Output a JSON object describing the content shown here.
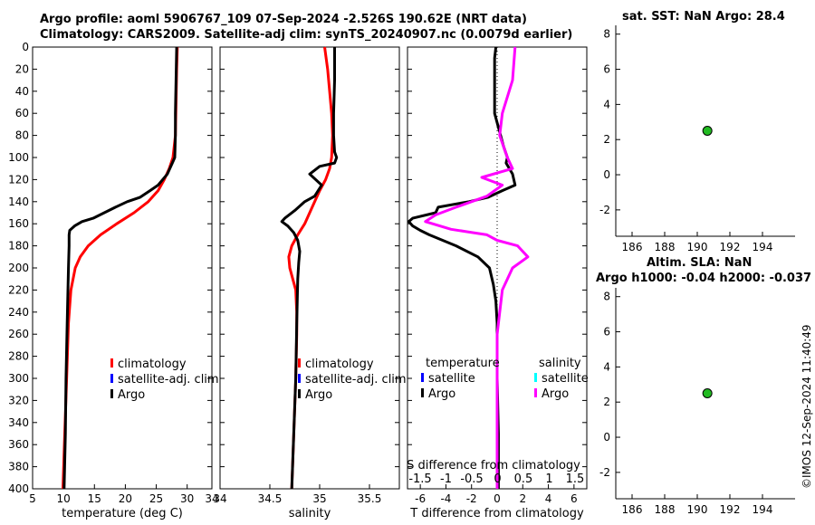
{
  "header": {
    "title_line1": "Argo profile: aoml 5906767_109 07-Sep-2024 -2.526S 190.62E (NRT data)",
    "title_line2": "Climatology: CARS2009. Satellite-adj clim: synTS_20240907.nc (0.0079d earlier)"
  },
  "sst_panel_title": "sat. SST: NaN Argo: 28.4",
  "sla_panel_title_line1": "Altim. SLA: NaN",
  "sla_panel_title_line2": "Argo h1000: -0.04 h2000: -0.037",
  "timestamp": "©IMOS 12-Sep-2024 11:40:49",
  "colors": {
    "climatology": "#ff0000",
    "satellite": "#0000ff",
    "argo": "#000000",
    "salinity_diff": "#ff00ff",
    "salinity_satellite": "#00ffff",
    "marker": "#22bb22"
  },
  "chart_data": [
    {
      "type": "line",
      "name": "temperature",
      "xlabel": "temperature (deg C)",
      "ylabel": "",
      "xlim": [
        5,
        34
      ],
      "ylim": [
        400,
        0
      ],
      "xticks": [
        5,
        10,
        15,
        20,
        25,
        30,
        34
      ],
      "yticks": [
        0,
        20,
        40,
        60,
        80,
        100,
        120,
        140,
        160,
        180,
        200,
        220,
        240,
        260,
        280,
        300,
        320,
        340,
        360,
        380,
        400
      ],
      "legend": [
        "climatology",
        "satellite-adj. clim",
        "Argo"
      ],
      "series": [
        {
          "name": "climatology",
          "color": "#ff0000",
          "depth": [
            0,
            20,
            50,
            80,
            100,
            110,
            120,
            130,
            140,
            150,
            160,
            170,
            180,
            190,
            200,
            220,
            250,
            300,
            350,
            400
          ],
          "values": [
            28.4,
            28.3,
            28.2,
            28.1,
            27.7,
            27.1,
            26.3,
            25.3,
            23.7,
            21.4,
            18.6,
            16.0,
            14.0,
            12.7,
            11.9,
            11.2,
            10.8,
            10.5,
            10.2,
            9.9
          ]
        },
        {
          "name": "Argo",
          "color": "#000000",
          "depth": [
            0,
            30,
            60,
            80,
            100,
            105,
            115,
            125,
            130,
            136,
            140,
            145,
            150,
            155,
            158,
            162,
            166,
            170,
            180,
            200,
            250,
            300,
            350,
            400
          ],
          "values": [
            28.3,
            28.2,
            28.1,
            28.1,
            28.0,
            27.6,
            26.8,
            25.3,
            24.0,
            22.4,
            20.3,
            18.4,
            16.6,
            14.8,
            13.0,
            11.8,
            11.0,
            10.9,
            10.9,
            10.8,
            10.6,
            10.4,
            10.3,
            10.1
          ]
        }
      ]
    },
    {
      "type": "line",
      "name": "salinity",
      "xlabel": "salinity",
      "xlim": [
        34,
        35.8
      ],
      "ylim": [
        400,
        0
      ],
      "xticks": [
        34.5,
        35,
        35.5
      ],
      "legend": [
        "climatology",
        "satellite-adj. clim",
        "Argo"
      ],
      "series": [
        {
          "name": "climatology",
          "color": "#ff0000",
          "depth": [
            0,
            20,
            40,
            60,
            80,
            100,
            110,
            120,
            130,
            140,
            150,
            160,
            170,
            180,
            190,
            200,
            210,
            220,
            240,
            260,
            300,
            350,
            400
          ],
          "values": [
            35.05,
            35.08,
            35.1,
            35.12,
            35.13,
            35.12,
            35.1,
            35.06,
            35.0,
            34.95,
            34.9,
            34.85,
            34.78,
            34.72,
            34.69,
            34.7,
            34.73,
            34.76,
            34.77,
            34.77,
            34.76,
            34.74,
            34.72
          ]
        },
        {
          "name": "Argo",
          "color": "#000000",
          "depth": [
            0,
            30,
            60,
            80,
            95,
            100,
            105,
            108,
            115,
            125,
            135,
            140,
            148,
            155,
            158,
            162,
            168,
            175,
            185,
            195,
            210,
            250,
            300,
            350,
            400
          ],
          "values": [
            35.15,
            35.15,
            35.14,
            35.14,
            35.15,
            35.17,
            35.15,
            35.0,
            34.9,
            35.02,
            34.95,
            34.85,
            34.75,
            34.65,
            34.62,
            34.68,
            34.74,
            34.78,
            34.8,
            34.79,
            34.78,
            34.77,
            34.76,
            34.74,
            34.72
          ]
        }
      ]
    },
    {
      "type": "line",
      "name": "difference",
      "xlabel": "T difference from climatology",
      "xlim": [
        -7,
        7
      ],
      "ylim": [
        400,
        0
      ],
      "xticks": [
        -6,
        -4,
        -2,
        0,
        2,
        4,
        6
      ],
      "top_axis_label": "S difference from climatology",
      "top_xticks": [
        "-1.5",
        "-1",
        "-0.5",
        "0",
        "0.5",
        "1",
        "1.5"
      ],
      "legend_temperature": {
        "heading": "temperature",
        "items": [
          "satellite",
          "Argo"
        ]
      },
      "legend_salinity": {
        "heading": "salinity",
        "items": [
          "satellite",
          "Argo"
        ]
      },
      "series": [
        {
          "name": "temperature Argo",
          "color": "#000000",
          "depth": [
            0,
            10,
            60,
            90,
            100,
            105,
            115,
            125,
            130,
            136,
            140,
            145,
            150,
            155,
            158,
            162,
            166,
            170,
            180,
            190,
            200,
            215,
            230,
            250,
            300,
            350,
            400
          ],
          "values": [
            -0.1,
            -0.2,
            -0.2,
            0.5,
            0.8,
            0.7,
            1.2,
            1.4,
            0.4,
            -0.7,
            -2.2,
            -4.6,
            -4.8,
            -6.6,
            -6.9,
            -6.6,
            -6.0,
            -5.3,
            -3.2,
            -1.5,
            -0.6,
            -0.3,
            -0.1,
            0.0,
            0.0,
            0.1,
            0.1
          ]
        },
        {
          "name": "salinity Argo",
          "color": "#ff00ff",
          "depth": [
            0,
            30,
            60,
            80,
            100,
            110,
            118,
            125,
            135,
            145,
            152,
            158,
            165,
            170,
            175,
            180,
            190,
            200,
            220,
            260,
            300,
            350,
            400
          ],
          "values": [
            0.35,
            0.3,
            0.1,
            0.05,
            0.2,
            0.3,
            -0.3,
            0.1,
            -0.2,
            -0.8,
            -1.2,
            -1.4,
            -0.9,
            -0.2,
            0.0,
            0.4,
            0.6,
            0.3,
            0.1,
            0.0,
            0.0,
            0.0,
            0.0
          ]
        }
      ]
    },
    {
      "type": "scatter",
      "name": "sat_sst",
      "xlim": [
        185,
        196
      ],
      "ylim": [
        -3.5,
        8.5
      ],
      "xticks": [
        186,
        188,
        190,
        192,
        194
      ],
      "yticks": [
        -2,
        0,
        2,
        4,
        6,
        8
      ],
      "points": [
        {
          "x": 190.62,
          "y": 2.5
        }
      ]
    },
    {
      "type": "scatter",
      "name": "altim_sla",
      "xlim": [
        185,
        196
      ],
      "ylim": [
        -3.5,
        8.5
      ],
      "xticks": [
        186,
        188,
        190,
        192,
        194
      ],
      "yticks": [
        -2,
        0,
        2,
        4,
        6,
        8
      ],
      "points": [
        {
          "x": 190.62,
          "y": 2.5
        }
      ]
    }
  ]
}
